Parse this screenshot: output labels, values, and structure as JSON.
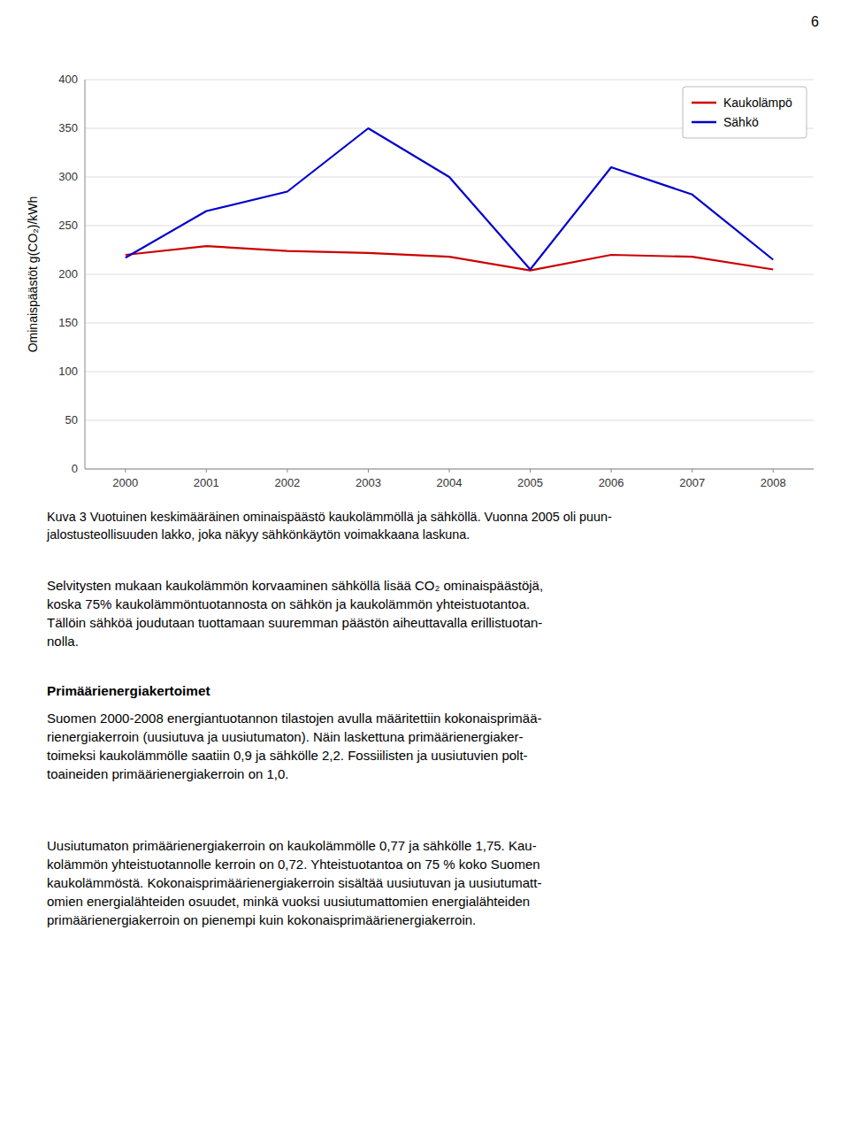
{
  "chart_data": {
    "type": "line",
    "y_label": "Ominaispäästöt g(CO₂)/kWh",
    "x": [
      2000,
      2001,
      2002,
      2003,
      2004,
      2005,
      2006,
      2007,
      2008
    ],
    "series": [
      {
        "name": "Kaukolämpö",
        "color": "#cc0000",
        "values": [
          220,
          229,
          224,
          222,
          218,
          204,
          220,
          218,
          205
        ]
      },
      {
        "name": "Sähkö",
        "color": "#0000cc",
        "values": [
          217,
          265,
          285,
          350,
          300,
          205,
          310,
          282,
          215
        ]
      }
    ],
    "xlim": [
      1999.5,
      2008.5
    ],
    "xticks": [
      2000,
      2001,
      2002,
      2003,
      2004,
      2005,
      2006,
      2007,
      2008
    ],
    "ylim": [
      0,
      400
    ],
    "yticks": [
      0,
      50,
      100,
      150,
      200,
      250,
      300,
      350,
      400
    ],
    "grid": "y",
    "legend": "upper right"
  },
  "page_number": "6",
  "caption": "Kuva 3 Vuotuinen keskimääräinen ominaispäästö kaukolämmöllä ja sähköllä. Vuonna 2005 oli puun-\njalostusteollisuuden lakko, joka näkyy sähkönkäytön voimakkaana laskuna.",
  "paragraph_1": "Selvitysten mukaan kaukolämmön korvaaminen sähköllä lisää CO₂ ominaispäästöjä,\nkoska 75% kaukolämmöntuotannosta on sähkön ja kaukolämmön yhteistuotantoa.\nTällöin sähköä joudutaan tuottamaan suuremman päästön aiheuttavalla erillistuotan-\nnolla.",
  "heading": "Primäärienergiakertoimet",
  "paragraph_2": "Suomen 2000-2008 energiantuotannon tilastojen avulla määritettiin kokonaisprimää-\nrienergiakerroin (uusiutuva ja uusiutumaton). Näin laskettuna primäärienergiaker-\ntoimeksi kaukolämmölle saatiin 0,9 ja sähkölle 2,2. Fossiilisten ja uusiutuvien polt-\ntoaineiden primäärienergiakerroin on 1,0.",
  "paragraph_3": "Uusiutumaton primäärienergiakerroin on kaukolämmölle 0,77 ja sähkölle 1,75. Kau-\nkolämmön yhteistuotannolle kerroin on 0,72. Yhteistuotantoa on 75 % koko Suomen\nkaukolämmöstä. Kokonaisprimäärienergiakerroin sisältää uusiutuvan ja uusiutumatt-\nomien energialähteiden osuudet, minkä vuoksi uusiutumattomien energialähteiden\nprimäärienergiakerroin on pienempi kuin kokonaisprimäärienergiakerroin."
}
